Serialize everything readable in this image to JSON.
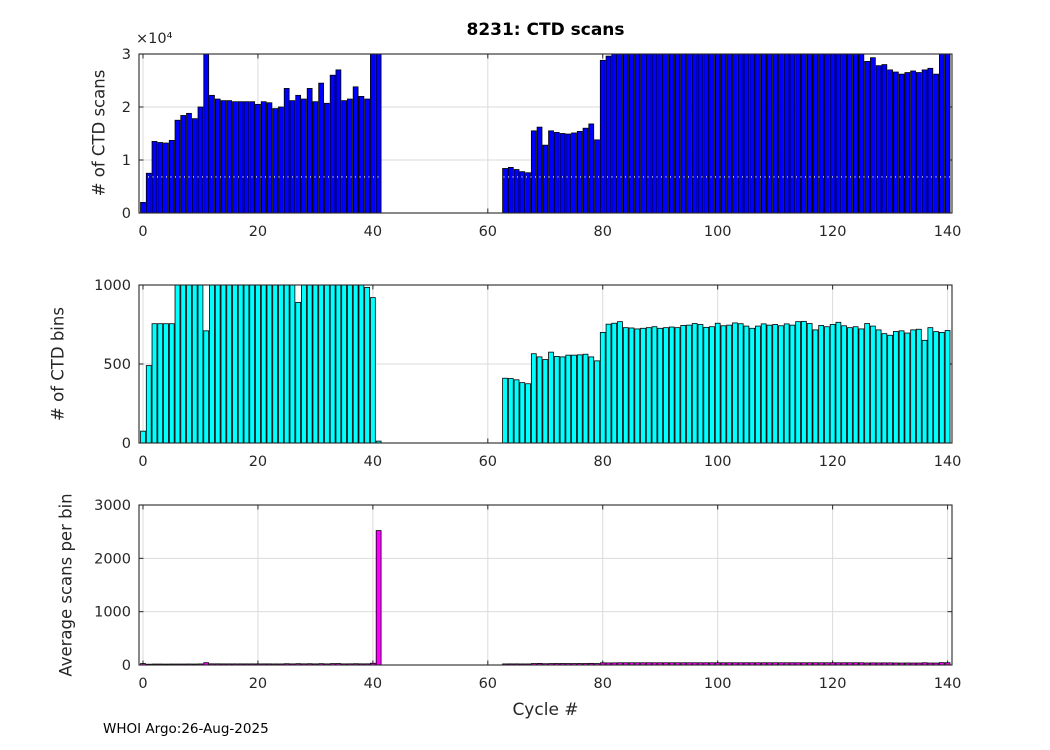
{
  "figure": {
    "title": "8231: CTD scans",
    "xlabel": "Cycle #",
    "footer": "WHOI Argo:26-Aug-2025",
    "axis_color": "#262626",
    "grid_color": "#dbdbdb",
    "bar_edge_color": "#000000"
  },
  "chart_data": [
    {
      "type": "bar",
      "title": "8231: CTD scans",
      "ylabel": "# of CTD scans",
      "exponent_label": "×10⁴",
      "bar_color": "#0000FF",
      "ylim": [
        0,
        30000
      ],
      "yticks": {
        "values": [
          0,
          10000,
          20000,
          30000
        ],
        "labels": [
          "0",
          "1",
          "2",
          "3"
        ]
      },
      "xlim": [
        -0.7,
        140.7
      ],
      "xticks": {
        "values": [
          0,
          20,
          40,
          60,
          80,
          100,
          120,
          140
        ],
        "labels": [
          "0",
          "20",
          "40",
          "60",
          "80",
          "100",
          "120",
          "140"
        ]
      },
      "grid": true,
      "overlay_dotted_line_value": 6800,
      "x": [
        0,
        1,
        2,
        3,
        4,
        5,
        6,
        7,
        8,
        9,
        10,
        11,
        12,
        13,
        14,
        15,
        16,
        17,
        18,
        19,
        20,
        21,
        22,
        23,
        24,
        25,
        26,
        27,
        28,
        29,
        30,
        31,
        32,
        33,
        34,
        35,
        36,
        37,
        38,
        39,
        40,
        41,
        63,
        64,
        65,
        66,
        67,
        68,
        69,
        70,
        71,
        72,
        73,
        74,
        75,
        76,
        77,
        78,
        79,
        80,
        81,
        82,
        83,
        84,
        85,
        86,
        87,
        88,
        89,
        90,
        91,
        92,
        93,
        94,
        95,
        96,
        97,
        98,
        99,
        100,
        101,
        102,
        103,
        104,
        105,
        106,
        107,
        108,
        109,
        110,
        111,
        112,
        113,
        114,
        115,
        116,
        117,
        118,
        119,
        120,
        121,
        122,
        123,
        124,
        125,
        126,
        127,
        128,
        129,
        130,
        131,
        132,
        133,
        134,
        135,
        136,
        137,
        138,
        139,
        140
      ],
      "values": [
        2000,
        7500,
        13500,
        13300,
        13200,
        13700,
        17500,
        18400,
        18800,
        17800,
        20000,
        30500,
        22200,
        21500,
        21200,
        21200,
        21000,
        21000,
        21000,
        21000,
        20500,
        21000,
        20800,
        19700,
        20000,
        23500,
        21200,
        22200,
        21500,
        23500,
        21000,
        24500,
        20700,
        26000,
        27000,
        21200,
        21500,
        23800,
        22000,
        21500,
        30500,
        30500,
        8400,
        8600,
        8200,
        7800,
        7600,
        15500,
        16200,
        12800,
        15500,
        15200,
        15000,
        14900,
        15100,
        15400,
        16000,
        16800,
        13800,
        28800,
        29600,
        30500,
        30500,
        30500,
        30500,
        30500,
        30500,
        30500,
        30500,
        30500,
        30500,
        30500,
        30500,
        30500,
        30500,
        30500,
        30500,
        30500,
        30500,
        30500,
        30500,
        30500,
        30500,
        30500,
        30500,
        30500,
        30500,
        30500,
        30500,
        30500,
        30500,
        30500,
        30500,
        30500,
        30500,
        30500,
        30500,
        30500,
        30500,
        30500,
        30500,
        30500,
        30500,
        30500,
        30500,
        28600,
        29300,
        27800,
        28000,
        27000,
        26600,
        26200,
        26500,
        26800,
        26500,
        27000,
        27300,
        26200,
        30500,
        30500
      ]
    },
    {
      "type": "bar",
      "ylabel": "# of CTD bins",
      "bar_color": "#00FFFF",
      "ylim": [
        0,
        1000
      ],
      "yticks": {
        "values": [
          0,
          500,
          1000
        ],
        "labels": [
          "0",
          "500",
          "1000"
        ]
      },
      "xlim": [
        -0.7,
        140.7
      ],
      "xticks": {
        "values": [
          0,
          20,
          40,
          60,
          80,
          100,
          120,
          140
        ],
        "labels": [
          "0",
          "20",
          "40",
          "60",
          "80",
          "100",
          "120",
          "140"
        ]
      },
      "grid": true,
      "x": [
        0,
        1,
        2,
        3,
        4,
        5,
        6,
        7,
        8,
        9,
        10,
        11,
        12,
        13,
        14,
        15,
        16,
        17,
        18,
        19,
        20,
        21,
        22,
        23,
        24,
        25,
        26,
        27,
        28,
        29,
        30,
        31,
        32,
        33,
        34,
        35,
        36,
        37,
        38,
        39,
        40,
        41,
        63,
        64,
        65,
        66,
        67,
        68,
        69,
        70,
        71,
        72,
        73,
        74,
        75,
        76,
        77,
        78,
        79,
        80,
        81,
        82,
        83,
        84,
        85,
        86,
        87,
        88,
        89,
        90,
        91,
        92,
        93,
        94,
        95,
        96,
        97,
        98,
        99,
        100,
        101,
        102,
        103,
        104,
        105,
        106,
        107,
        108,
        109,
        110,
        111,
        112,
        113,
        114,
        115,
        116,
        117,
        118,
        119,
        120,
        121,
        122,
        123,
        124,
        125,
        126,
        127,
        128,
        129,
        130,
        131,
        132,
        133,
        134,
        135,
        136,
        137,
        138,
        139,
        140
      ],
      "values": [
        75,
        490,
        755,
        755,
        755,
        755,
        1000,
        1000,
        1000,
        1000,
        1000,
        710,
        1000,
        1000,
        1000,
        1000,
        1000,
        1000,
        1000,
        1000,
        1000,
        1000,
        1000,
        1000,
        1000,
        1000,
        1000,
        890,
        1000,
        1000,
        1000,
        1000,
        1000,
        1000,
        1000,
        1000,
        1000,
        1000,
        1000,
        985,
        920,
        12,
        410,
        408,
        400,
        382,
        375,
        565,
        545,
        528,
        575,
        548,
        545,
        556,
        556,
        558,
        562,
        545,
        520,
        700,
        752,
        758,
        768,
        730,
        728,
        722,
        726,
        730,
        736,
        726,
        730,
        734,
        730,
        744,
        746,
        756,
        750,
        732,
        736,
        758,
        742,
        746,
        760,
        755,
        740,
        726,
        740,
        754,
        746,
        750,
        742,
        754,
        746,
        768,
        770,
        756,
        716,
        744,
        736,
        750,
        764,
        742,
        730,
        736,
        722,
        756,
        740,
        716,
        692,
        682,
        706,
        710,
        696,
        716,
        720,
        650,
        730,
        705,
        700,
        712
      ]
    },
    {
      "type": "bar",
      "ylabel": "Average scans per bin",
      "bar_color": "#FF00FF",
      "ylim": [
        0,
        3000
      ],
      "yticks": {
        "values": [
          0,
          1000,
          2000,
          3000
        ],
        "labels": [
          "0",
          "1000",
          "2000",
          "3000"
        ]
      },
      "xlim": [
        -0.7,
        140.7
      ],
      "xticks": {
        "values": [
          0,
          20,
          40,
          60,
          80,
          100,
          120,
          140
        ],
        "labels": [
          "0",
          "20",
          "40",
          "60",
          "80",
          "100",
          "120",
          "140"
        ]
      },
      "grid": true,
      "x": [
        0,
        1,
        2,
        3,
        4,
        5,
        6,
        7,
        8,
        9,
        10,
        11,
        12,
        13,
        14,
        15,
        16,
        17,
        18,
        19,
        20,
        21,
        22,
        23,
        24,
        25,
        26,
        27,
        28,
        29,
        30,
        31,
        32,
        33,
        34,
        35,
        36,
        37,
        38,
        39,
        40,
        41,
        63,
        64,
        65,
        66,
        67,
        68,
        69,
        70,
        71,
        72,
        73,
        74,
        75,
        76,
        77,
        78,
        79,
        80,
        81,
        82,
        83,
        84,
        85,
        86,
        87,
        88,
        89,
        90,
        91,
        92,
        93,
        94,
        95,
        96,
        97,
        98,
        99,
        100,
        101,
        102,
        103,
        104,
        105,
        106,
        107,
        108,
        109,
        110,
        111,
        112,
        113,
        114,
        115,
        116,
        117,
        118,
        119,
        120,
        121,
        122,
        123,
        124,
        125,
        126,
        127,
        128,
        129,
        130,
        131,
        132,
        133,
        134,
        135,
        136,
        137,
        138,
        139,
        140
      ],
      "values": [
        27,
        15,
        18,
        18,
        17,
        18,
        18,
        18,
        19,
        18,
        20,
        43,
        22,
        22,
        21,
        21,
        21,
        21,
        21,
        21,
        21,
        21,
        21,
        20,
        20,
        24,
        21,
        25,
        22,
        24,
        21,
        25,
        21,
        26,
        27,
        21,
        22,
        24,
        22,
        22,
        33,
        2520,
        20,
        21,
        21,
        20,
        20,
        27,
        30,
        24,
        27,
        28,
        28,
        27,
        27,
        28,
        28,
        31,
        27,
        41,
        39,
        40,
        42,
        42,
        42,
        42,
        42,
        42,
        42,
        42,
        42,
        42,
        42,
        42,
        42,
        42,
        42,
        42,
        42,
        42,
        42,
        42,
        42,
        42,
        42,
        42,
        42,
        42,
        42,
        42,
        42,
        42,
        42,
        42,
        42,
        42,
        42,
        42,
        42,
        42,
        42,
        42,
        42,
        42,
        42,
        38,
        40,
        39,
        40,
        40,
        38,
        37,
        38,
        37,
        37,
        42,
        37,
        37,
        44,
        43
      ]
    }
  ]
}
